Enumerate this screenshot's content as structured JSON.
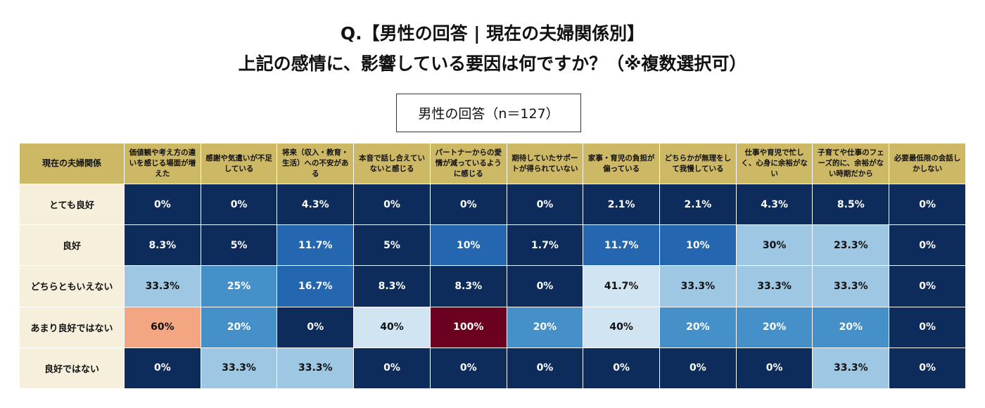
{
  "header": {
    "title_lines": [
      "Q.【男性の回答 | 現在の夫婦関係別】",
      "上記の感情に、影響している要因は何ですか？（※複数選択可）"
    ],
    "subtitle": "男性の回答（n＝127）"
  },
  "table": {
    "columns": [
      "現在の夫婦関係",
      "価値観や考え方の違いを感じる場面が増えた",
      "感謝や気遣いが不足している",
      "将来（収入・教育・生活）への不安がある",
      "本音で話し合えていないと感じる",
      "パートナーからの愛情が減っているように感じる",
      "期待していたサポートが得られていない",
      "家事・育児の負担が偏っている",
      "どちらかが無理をして我慢している",
      "仕事や育児で忙しく、心身に余裕がない",
      "子育てや仕事のフェーズ的に、余裕がない時期だから",
      "必要最低限の会話しかしない"
    ],
    "rows": [
      [
        "とても良好",
        "0%",
        "0%",
        "4.3%",
        "0%",
        "0%",
        "0%",
        "2.1%",
        "2.1%",
        "4.3%",
        "8.5%",
        "0%"
      ],
      [
        "良好",
        "8.3%",
        "5%",
        "11.7%",
        "5%",
        "10%",
        "1.7%",
        "11.7%",
        "10%",
        "30%",
        "23.3%",
        "0%"
      ],
      [
        "どちらともいえない",
        "33.3%",
        "25%",
        "16.7%",
        "8.3%",
        "8.3%",
        "0%",
        "41.7%",
        "33.3%",
        "33.3%",
        "33.3%",
        "0%"
      ],
      [
        "あまり良好ではない",
        "60%",
        "20%",
        "0%",
        "40%",
        "100%",
        "20%",
        "40%",
        "20%",
        "20%",
        "20%",
        "0%"
      ],
      [
        "良好ではない",
        "0%",
        "33.3%",
        "33.3%",
        "0%",
        "0%",
        "0%",
        "0%",
        "0%",
        "0%",
        "33.3%",
        "0%"
      ]
    ]
  }
}
